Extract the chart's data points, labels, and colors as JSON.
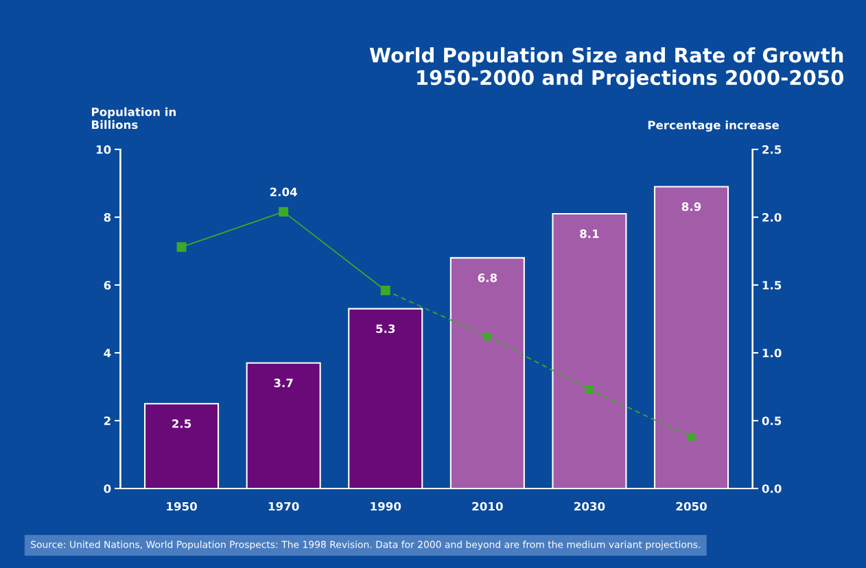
{
  "chart_data": {
    "type": "bar",
    "title": "World Population Size and Rate of Growth\n1950-2000 and Projections 2000-2050",
    "ylabel": "Population in\nBillions",
    "y2label": "Percentage increase",
    "categories": [
      "1950",
      "1970",
      "1990",
      "2010",
      "2030",
      "2050"
    ],
    "series": [
      {
        "values": [
          2.5,
          3.7,
          5.3,
          6.8,
          8.1,
          8.9
        ],
        "colors": [
          "#690a78",
          "#690a78",
          "#690a78",
          "#a35ca8",
          "#a35ca8",
          "#a35ca8"
        ],
        "data_labels": true
      },
      {
        "type": "line",
        "axis": "y2",
        "color": "#3caa28",
        "marker": "square",
        "line_style": "solid",
        "values": [
          1.78,
          2.04,
          1.46,
          null,
          null,
          null
        ],
        "value_labels": [
          null,
          "2.04",
          null,
          null,
          null,
          null
        ]
      },
      {
        "type": "line",
        "axis": "y2",
        "color": "#3caa28",
        "marker": "square",
        "line_style": "dashed",
        "values": [
          null,
          null,
          1.46,
          1.12,
          0.73,
          0.38
        ]
      }
    ],
    "ylim": [
      0,
      10
    ],
    "yticks": [
      0,
      2,
      4,
      6,
      8,
      10
    ],
    "y2lim": [
      0,
      2.5
    ],
    "y2ticks": [
      {
        "value": 0,
        "label": "0.0"
      },
      {
        "value": 0.5,
        "label": "0.5"
      },
      {
        "value": 1,
        "label": "1.0"
      },
      {
        "value": 1.5,
        "label": "1.5"
      },
      {
        "value": 2,
        "label": "2.0"
      },
      {
        "value": 2.5,
        "label": "2.5"
      }
    ],
    "grid": false,
    "legend": false,
    "annotations": [
      "Source: United Nations, World Population Prospects: The 1998 Revision. Data for 2000 and beyond are from the medium variant projections."
    ]
  }
}
